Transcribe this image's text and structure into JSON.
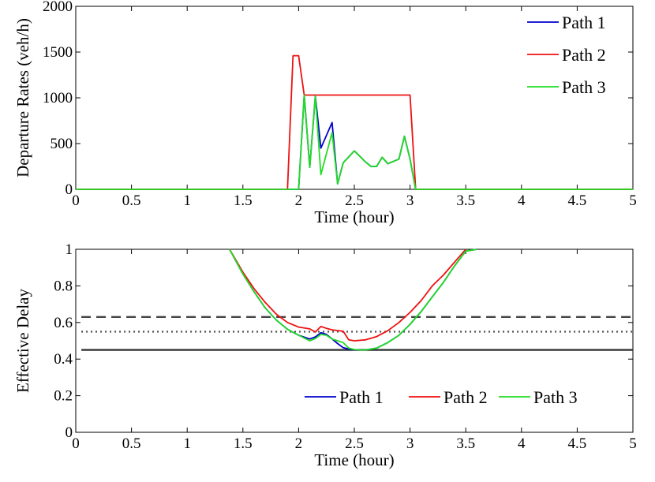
{
  "chart_data": [
    {
      "type": "line",
      "xlabel": "Time (hour)",
      "ylabel": "Departure Rates (veh/h)",
      "xlim": [
        0,
        5
      ],
      "ylim": [
        0,
        2000
      ],
      "xticks": [
        "0",
        "0.5",
        "1",
        "1.5",
        "2",
        "2.5",
        "3",
        "3.5",
        "4",
        "4.5",
        "5"
      ],
      "yticks": [
        "0",
        "500",
        "1000",
        "1500",
        "2000"
      ],
      "grid": false,
      "legend_position": "top-right",
      "series": [
        {
          "name": "Path 1",
          "color": "#0000cc",
          "x": [
            0,
            2.0,
            2.05,
            2.1,
            2.15,
            2.2,
            2.3,
            2.35,
            2.4,
            2.5,
            2.55,
            2.6,
            2.65,
            2.7,
            2.75,
            2.8,
            2.9,
            2.95,
            3.0,
            3.05,
            5
          ],
          "y": [
            0,
            0,
            1030,
            240,
            1020,
            450,
            730,
            60,
            290,
            420,
            360,
            300,
            250,
            250,
            350,
            280,
            330,
            580,
            330,
            0,
            0
          ]
        },
        {
          "name": "Path 2",
          "color": "#ee1111",
          "x": [
            0,
            1.9,
            1.95,
            2.0,
            2.05,
            3.0,
            3.05,
            5
          ],
          "y": [
            0,
            0,
            1460,
            1460,
            1030,
            1030,
            0,
            0
          ]
        },
        {
          "name": "Path 3",
          "color": "#22dd22",
          "x": [
            0,
            2.0,
            2.05,
            2.1,
            2.15,
            2.2,
            2.3,
            2.35,
            2.4,
            2.5,
            2.55,
            2.6,
            2.65,
            2.7,
            2.75,
            2.8,
            2.9,
            2.95,
            3.0,
            3.05,
            5
          ],
          "y": [
            0,
            0,
            1030,
            240,
            1020,
            160,
            620,
            60,
            290,
            420,
            360,
            300,
            250,
            250,
            350,
            280,
            330,
            580,
            330,
            0,
            0
          ]
        }
      ]
    },
    {
      "type": "line",
      "xlabel": "Time (hour)",
      "ylabel": "Effective Delay",
      "xlim": [
        0,
        5
      ],
      "ylim": [
        0,
        1
      ],
      "xticks": [
        "0",
        "0.5",
        "1",
        "1.5",
        "2",
        "2.5",
        "3",
        "3.5",
        "4",
        "4.5",
        "5"
      ],
      "yticks": [
        "0",
        "0.2",
        "0.4",
        "0.6",
        "0.8",
        "1"
      ],
      "grid": false,
      "legend_position": "bottom-right",
      "series": [
        {
          "name": "Path 1",
          "color": "#0000cc",
          "x": [
            1.38,
            1.5,
            1.6,
            1.7,
            1.8,
            1.9,
            2.0,
            2.1,
            2.15,
            2.2,
            2.25,
            2.3,
            2.35,
            2.4,
            2.45,
            2.5,
            2.55,
            2.6,
            2.7,
            2.8,
            2.9,
            3.0,
            3.1,
            3.2,
            3.3,
            3.4,
            3.5,
            3.6
          ],
          "y": [
            1.0,
            0.865,
            0.768,
            0.68,
            0.613,
            0.563,
            0.53,
            0.51,
            0.521,
            0.544,
            0.535,
            0.51,
            0.485,
            0.462,
            0.455,
            0.451,
            0.45,
            0.45,
            0.46,
            0.49,
            0.53,
            0.59,
            0.66,
            0.74,
            0.82,
            0.91,
            0.99,
            1.0
          ]
        },
        {
          "name": "Path 2",
          "color": "#ee1111",
          "x": [
            1.38,
            1.5,
            1.6,
            1.7,
            1.8,
            1.9,
            2.0,
            2.1,
            2.15,
            2.2,
            2.25,
            2.3,
            2.4,
            2.45,
            2.5,
            2.6,
            2.7,
            2.8,
            2.9,
            3.0,
            3.1,
            3.2,
            3.3,
            3.4,
            3.5
          ],
          "y": [
            1.0,
            0.875,
            0.785,
            0.71,
            0.645,
            0.6,
            0.575,
            0.565,
            0.548,
            0.578,
            0.568,
            0.56,
            0.552,
            0.505,
            0.5,
            0.505,
            0.523,
            0.555,
            0.6,
            0.655,
            0.72,
            0.8,
            0.86,
            0.93,
            1.0
          ]
        },
        {
          "name": "Path 3",
          "color": "#22dd22",
          "x": [
            1.38,
            1.5,
            1.6,
            1.7,
            1.8,
            1.9,
            2.0,
            2.1,
            2.15,
            2.2,
            2.25,
            2.3,
            2.35,
            2.4,
            2.45,
            2.5,
            2.55,
            2.6,
            2.7,
            2.8,
            2.9,
            3.0,
            3.1,
            3.2,
            3.3,
            3.4,
            3.5,
            3.6
          ],
          "y": [
            1.0,
            0.865,
            0.768,
            0.68,
            0.613,
            0.563,
            0.53,
            0.5,
            0.512,
            0.535,
            0.53,
            0.51,
            0.5,
            0.49,
            0.46,
            0.452,
            0.45,
            0.45,
            0.46,
            0.49,
            0.53,
            0.59,
            0.66,
            0.74,
            0.82,
            0.91,
            0.99,
            1.0
          ]
        }
      ],
      "reference_lines": [
        {
          "y": 0.63,
          "style": "dashed",
          "color": "#444444"
        },
        {
          "y": 0.55,
          "style": "dotted",
          "color": "#555555"
        },
        {
          "y": 0.45,
          "style": "solid",
          "color": "#333333"
        }
      ]
    }
  ]
}
